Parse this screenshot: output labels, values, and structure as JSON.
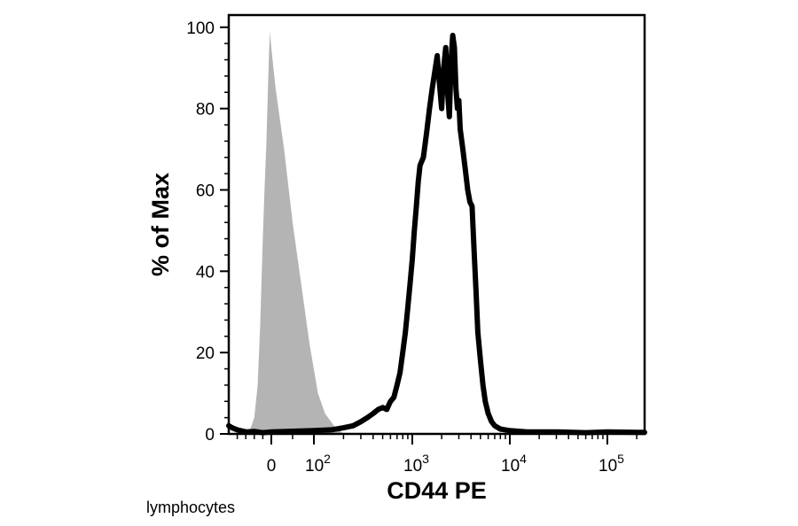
{
  "chart_data": {
    "type": "area",
    "xlabel": "CD44 PE",
    "ylabel": "% of Max",
    "x_scale": "biexponential",
    "xlim": [
      -500,
      250000
    ],
    "ylim": [
      0,
      103
    ],
    "y_ticks": [
      0,
      20,
      40,
      60,
      80,
      100
    ],
    "x_ticks": [
      {
        "value": 0,
        "base": "0",
        "exp": ""
      },
      {
        "value": 100,
        "base": "10",
        "exp": "2"
      },
      {
        "value": 1000,
        "base": "10",
        "exp": "3"
      },
      {
        "value": 10000,
        "base": "10",
        "exp": "4"
      },
      {
        "value": 100000,
        "base": "10",
        "exp": "5"
      }
    ],
    "grid": false,
    "legend": "none",
    "annotation": "lymphocytes",
    "series": [
      {
        "role": "control",
        "style": "filled",
        "color": "#b4b4b4",
        "points": [
          [
            -300,
            0
          ],
          [
            -250,
            1
          ],
          [
            -200,
            4
          ],
          [
            -160,
            12
          ],
          [
            -130,
            27
          ],
          [
            -100,
            48
          ],
          [
            -80,
            60
          ],
          [
            -60,
            70
          ],
          [
            -40,
            85
          ],
          [
            -25,
            95
          ],
          [
            -15,
            99
          ],
          [
            -5,
            96
          ],
          [
            10,
            85
          ],
          [
            30,
            70
          ],
          [
            50,
            52
          ],
          [
            70,
            37
          ],
          [
            90,
            22
          ],
          [
            110,
            10
          ],
          [
            130,
            5
          ],
          [
            160,
            2
          ],
          [
            200,
            0
          ]
        ]
      },
      {
        "role": "stained",
        "style": "outline",
        "color": "#000000",
        "points": [
          [
            -500,
            2
          ],
          [
            -460,
            1.5
          ],
          [
            -400,
            1
          ],
          [
            -300,
            0.5
          ],
          [
            -200,
            0.6
          ],
          [
            -100,
            0.3
          ],
          [
            0,
            0.5
          ],
          [
            100,
            0.8
          ],
          [
            150,
            1
          ],
          [
            200,
            1.5
          ],
          [
            250,
            2
          ],
          [
            300,
            3
          ],
          [
            350,
            4
          ],
          [
            400,
            5
          ],
          [
            450,
            6
          ],
          [
            500,
            6.5
          ],
          [
            550,
            6
          ],
          [
            600,
            8
          ],
          [
            650,
            9
          ],
          [
            700,
            12
          ],
          [
            750,
            15
          ],
          [
            800,
            20
          ],
          [
            850,
            25
          ],
          [
            900,
            31
          ],
          [
            950,
            37
          ],
          [
            1000,
            43
          ],
          [
            1050,
            50
          ],
          [
            1100,
            56
          ],
          [
            1150,
            62
          ],
          [
            1200,
            66
          ],
          [
            1300,
            68
          ],
          [
            1400,
            74
          ],
          [
            1500,
            80
          ],
          [
            1600,
            85
          ],
          [
            1700,
            89
          ],
          [
            1800,
            93
          ],
          [
            1900,
            86
          ],
          [
            2000,
            80
          ],
          [
            2100,
            90
          ],
          [
            2200,
            95
          ],
          [
            2300,
            84
          ],
          [
            2400,
            78
          ],
          [
            2500,
            92
          ],
          [
            2600,
            98
          ],
          [
            2700,
            95
          ],
          [
            2800,
            85
          ],
          [
            2900,
            80
          ],
          [
            3000,
            82
          ],
          [
            3100,
            75
          ],
          [
            3300,
            70
          ],
          [
            3500,
            65
          ],
          [
            3700,
            60
          ],
          [
            3900,
            57
          ],
          [
            4100,
            56
          ],
          [
            4300,
            45
          ],
          [
            4500,
            35
          ],
          [
            4700,
            25
          ],
          [
            5000,
            18
          ],
          [
            5300,
            12
          ],
          [
            5600,
            8
          ],
          [
            6000,
            5
          ],
          [
            6500,
            3
          ],
          [
            7000,
            2
          ],
          [
            8000,
            1.2
          ],
          [
            10000,
            0.8
          ],
          [
            15000,
            0.5
          ],
          [
            30000,
            0.5
          ],
          [
            60000,
            0.3
          ],
          [
            100000,
            0.5
          ],
          [
            200000,
            0.4
          ],
          [
            250000,
            0.4
          ]
        ]
      }
    ]
  }
}
